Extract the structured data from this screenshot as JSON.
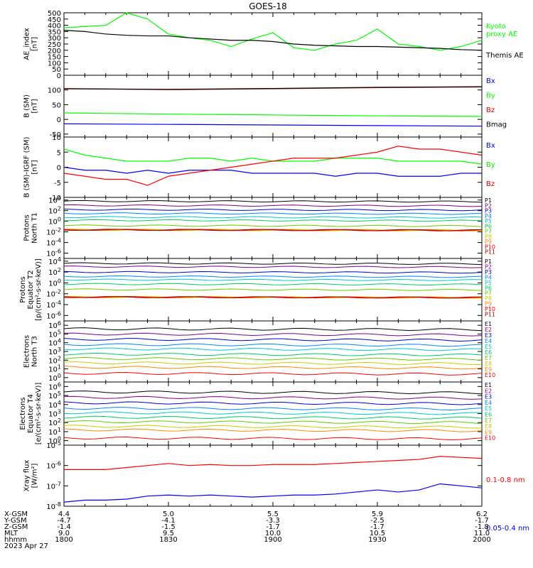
{
  "title": "GOES-18",
  "footer": {
    "row_labels": [
      "X-GSM",
      "Y-GSM",
      "Z-GSM",
      "MLT",
      "hhmm",
      "2023 Apr 27"
    ],
    "columns": [
      {
        "x-gsm": "4.4",
        "y-gsm": "-4.7",
        "z-gsm": "-1.4",
        "mlt": "9.0",
        "hhmm": "1800"
      },
      {
        "x-gsm": "5.0",
        "y-gsm": "-4.1",
        "z-gsm": "-1.5",
        "mlt": "9.5",
        "hhmm": "1830"
      },
      {
        "x-gsm": "5.5",
        "y-gsm": "-3.3",
        "z-gsm": "-1.7",
        "mlt": "10.0",
        "hhmm": "1900"
      },
      {
        "x-gsm": "5.9",
        "y-gsm": "-2.5",
        "z-gsm": "-1.7",
        "mlt": "10.5",
        "hhmm": "1930"
      },
      {
        "x-gsm": "6.2",
        "y-gsm": "-1.7",
        "z-gsm": "-1.8",
        "mlt": "11.0",
        "hhmm": "2000"
      }
    ]
  },
  "chart_data": [
    {
      "id": "ae",
      "type": "line",
      "ylabel": [
        "AE_index",
        "[nT]"
      ],
      "ylim": [
        0,
        500
      ],
      "log": false,
      "yticks": [
        0,
        50,
        100,
        150,
        200,
        250,
        300,
        350,
        400,
        450,
        500
      ],
      "x": [
        0,
        0.1,
        0.2,
        0.3,
        0.4,
        0.5,
        0.6,
        0.7,
        0.8,
        0.9,
        1.0,
        1.1,
        1.2,
        1.3,
        1.4,
        1.5,
        1.6,
        1.7,
        1.8,
        1.9,
        2.0
      ],
      "series": [
        {
          "name": "Kyoto proxy AE",
          "color": "#00ff00",
          "labels": [
            "Kyoto",
            "proxy AE"
          ],
          "values": [
            380,
            390,
            400,
            500,
            450,
            330,
            300,
            280,
            230,
            290,
            340,
            220,
            200,
            250,
            280,
            370,
            250,
            230,
            200,
            230,
            280
          ]
        },
        {
          "name": "Themis AE",
          "color": "#000000",
          "labels": [
            "Themis AE"
          ],
          "values": [
            360,
            350,
            330,
            320,
            315,
            315,
            300,
            290,
            280,
            280,
            270,
            250,
            240,
            235,
            230,
            230,
            225,
            220,
            215,
            205,
            200
          ]
        }
      ]
    },
    {
      "id": "b",
      "type": "line",
      "ylabel": [
        "B (SM)",
        "[nT]"
      ],
      "ylim": [
        -60,
        150
      ],
      "log": false,
      "yticks": [
        -50,
        0,
        50,
        100
      ],
      "x": [
        0,
        0.5,
        1,
        1.5,
        2
      ],
      "series": [
        {
          "name": "Bx",
          "color": "#0000ff",
          "values": [
            -15,
            -17,
            -19,
            -21,
            -23
          ]
        },
        {
          "name": "By",
          "color": "#00ff00",
          "values": [
            22,
            18,
            15,
            12,
            10
          ]
        },
        {
          "name": "Bz",
          "color": "#ff0000",
          "values": [
            105,
            101,
            104,
            108,
            110
          ]
        },
        {
          "name": "Bmag",
          "color": "#000000",
          "values": [
            104,
            102,
            105,
            109,
            111
          ]
        }
      ]
    },
    {
      "id": "bdiff",
      "type": "line",
      "ylabel": [
        "B (SM)-IGRF (SM)",
        "[nT]"
      ],
      "ylim": [
        -10,
        10
      ],
      "log": false,
      "yticks": [
        -10,
        -5,
        0,
        5,
        10
      ],
      "x": [
        0,
        0.1,
        0.2,
        0.3,
        0.4,
        0.5,
        0.6,
        0.7,
        0.8,
        0.9,
        1.0,
        1.1,
        1.2,
        1.3,
        1.4,
        1.5,
        1.6,
        1.7,
        1.8,
        1.9,
        2.0
      ],
      "series": [
        {
          "name": "Bx",
          "color": "#0000ff",
          "values": [
            0,
            -1,
            -1,
            -2,
            -1,
            -2,
            -1,
            -1,
            -1,
            -2,
            -2,
            -2,
            -2,
            -3,
            -2,
            -2,
            -3,
            -3,
            -3,
            -2,
            -2
          ]
        },
        {
          "name": "By",
          "color": "#00ff00",
          "values": [
            6,
            4,
            3,
            2,
            2,
            2,
            3,
            3,
            2,
            3,
            2,
            2,
            2,
            3,
            3,
            3,
            2,
            2,
            2,
            2,
            1
          ]
        },
        {
          "name": "Bz",
          "color": "#ff0000",
          "values": [
            -2,
            -3,
            -4,
            -4,
            -6,
            -3,
            -2,
            -1,
            0,
            1,
            2,
            3,
            3,
            3,
            4,
            5,
            7,
            6,
            6,
            5,
            4
          ]
        }
      ]
    },
    {
      "id": "p_north",
      "type": "line",
      "log": true,
      "ylabel": [
        "Protons",
        "North T1"
      ],
      "ylim_exp": [
        -7,
        4.5
      ],
      "yticks_exp": [
        -6,
        -4,
        -2,
        0,
        2,
        4
      ],
      "legend": [
        "P1",
        "P2",
        "P3",
        "P4",
        "P5",
        "P6",
        "P7",
        "P8",
        "P9",
        "P10",
        "P11"
      ],
      "colors": [
        "#000000",
        "#800080",
        "#0000cc",
        "#0088ff",
        "#00cccc",
        "#00cc66",
        "#66cc00",
        "#cccc00",
        "#ff8800",
        "#ff0000",
        "#aa0000"
      ],
      "levels_exp": [
        3.8,
        3.0,
        2.2,
        1.5,
        0.8,
        0.2,
        -0.8,
        -1.6,
        -1.6,
        -1.6,
        -1.6
      ]
    },
    {
      "id": "p_equator",
      "type": "line",
      "log": true,
      "ylabel": [
        "Protons",
        "Equator T2",
        "[p/(cm²-s-sr-keV)]"
      ],
      "ylim_exp": [
        -7,
        4.5
      ],
      "yticks_exp": [
        -6,
        -4,
        -2,
        0,
        2,
        4
      ],
      "legend": [
        "P1",
        "P2",
        "P3",
        "P4",
        "P5",
        "P6",
        "P7",
        "P8",
        "P9",
        "P10",
        "P11"
      ],
      "colors": [
        "#000000",
        "#800080",
        "#0000cc",
        "#0088ff",
        "#00cccc",
        "#00cc66",
        "#66cc00",
        "#cccc00",
        "#ff8800",
        "#ff0000",
        "#aa0000"
      ],
      "levels_exp": [
        3.6,
        3.0,
        2.0,
        1.2,
        0.6,
        -0.2,
        -1.2,
        -2.6,
        -2.6,
        -2.6,
        -2.6
      ]
    },
    {
      "id": "e_north",
      "type": "line",
      "log": true,
      "ylabel": [
        "Electrons",
        "North T3"
      ],
      "ylim_exp": [
        -0.5,
        6.5
      ],
      "yticks_exp": [
        0,
        1,
        2,
        3,
        4,
        5,
        6
      ],
      "legend": [
        "E1",
        "E2",
        "E3",
        "E4",
        "E5",
        "E6",
        "E7",
        "E8",
        "E9",
        "E10"
      ],
      "colors": [
        "#000000",
        "#800080",
        "#0000cc",
        "#0088ff",
        "#00cccc",
        "#00cc66",
        "#66cc00",
        "#cccc00",
        "#ff8800",
        "#ff0000"
      ],
      "levels_exp": [
        5.6,
        5.0,
        4.4,
        3.8,
        3.3,
        2.7,
        2.2,
        1.7,
        1.2,
        0.5
      ]
    },
    {
      "id": "e_equator",
      "type": "line",
      "log": true,
      "ylabel": [
        "Electrons",
        "Equator T4",
        "[e/(cm²-s-sr-keV)]"
      ],
      "ylim_exp": [
        -0.5,
        6.5
      ],
      "yticks_exp": [
        0,
        1,
        2,
        3,
        4,
        5,
        6
      ],
      "legend": [
        "E1",
        "E2",
        "E3",
        "E4",
        "E5",
        "E6",
        "E7",
        "E8",
        "E9",
        "E10"
      ],
      "colors": [
        "#000000",
        "#800080",
        "#0000cc",
        "#0088ff",
        "#00cccc",
        "#00cc66",
        "#66cc00",
        "#cccc00",
        "#ff8800",
        "#ff0000"
      ],
      "levels_exp": [
        5.4,
        4.8,
        4.2,
        3.6,
        3.1,
        2.6,
        2.1,
        1.6,
        1.2,
        0.3
      ]
    },
    {
      "id": "xray",
      "type": "line",
      "log": true,
      "ylabel": [
        "Xray flux",
        "[W/m²]"
      ],
      "ylim_exp": [
        -8,
        -5
      ],
      "yticks_exp": [
        -8,
        -7,
        -6,
        -5
      ],
      "x": [
        0,
        0.1,
        0.2,
        0.3,
        0.4,
        0.5,
        0.6,
        0.7,
        0.8,
        0.9,
        1.0,
        1.1,
        1.2,
        1.3,
        1.4,
        1.5,
        1.6,
        1.7,
        1.8,
        1.9,
        2.0
      ],
      "series": [
        {
          "name": "0.1-0.8 nm",
          "color": "#ff0000",
          "values_exp": [
            -6.2,
            -6.2,
            -6.2,
            -6.1,
            -6.0,
            -5.9,
            -6.0,
            -5.95,
            -6.0,
            -6.0,
            -5.95,
            -5.95,
            -5.95,
            -5.9,
            -5.85,
            -5.8,
            -5.75,
            -5.7,
            -5.55,
            -5.6,
            -5.65
          ]
        },
        {
          "name": "0.05-0.4 nm",
          "color": "#0000ff",
          "values_exp": [
            -7.8,
            -7.7,
            -7.7,
            -7.65,
            -7.5,
            -7.45,
            -7.5,
            -7.45,
            -7.5,
            -7.55,
            -7.5,
            -7.45,
            -7.45,
            -7.4,
            -7.3,
            -7.2,
            -7.3,
            -7.2,
            -6.9,
            -7.0,
            -7.1
          ]
        }
      ]
    }
  ]
}
